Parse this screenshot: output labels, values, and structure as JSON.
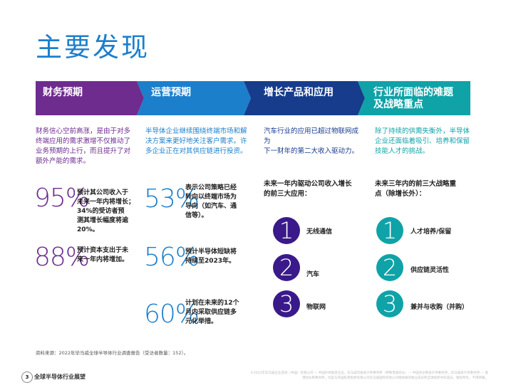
{
  "title": "主要发现",
  "colors": {
    "purple": "#6e2c8f",
    "blue": "#1b7fcc",
    "navy": "#173c8c",
    "teal": "#0fa3a8",
    "title": "#1c7fcc"
  },
  "columns": [
    {
      "header": "财务预期",
      "intro": [
        "财务信心空前高涨，是由于对多",
        "终端应用的需求激增不仅推动了",
        "业务预期的上行，而且提升了对",
        "额外产能的需求。"
      ],
      "stats": [
        {
          "value": "95%",
          "text": [
            "预计其公司收入于",
            "未来一年内将增长；",
            "34%的受访者预",
            "测其增长幅度将逾",
            "20%。"
          ]
        },
        {
          "value": "88%",
          "text": [
            "预计资本支出于未",
            "来一年内将增加。"
          ]
        }
      ]
    },
    {
      "header": "运营预期",
      "intro": [
        "半导体企业继续围绕终端市场和解",
        "决方案来更好地关注客户需求。许",
        "多企业正在对其供应链进行投资。"
      ],
      "stats": [
        {
          "value": "53%",
          "text": [
            "表示公司策略已经",
            "转向以终端市场为",
            "导向（如汽车、通",
            "信等）。"
          ]
        },
        {
          "value": "56%",
          "text": [
            "预计半导体短缺将",
            "持续至2023年。"
          ]
        },
        {
          "value": "60%",
          "text": [
            "计划在未来的12个",
            "月内采取供应链多",
            "元化举措。"
          ]
        }
      ]
    },
    {
      "header": "增长产品和应用",
      "intro": [
        "汽车行业的应用已超过物联网成为",
        "下一财年的第二大收入驱动力。"
      ],
      "subhead": [
        "未来一年内驱动公司收入增长",
        "的前三大应用："
      ],
      "items": [
        {
          "num": "1",
          "label": "无线通信"
        },
        {
          "num": "2",
          "label": "汽车"
        },
        {
          "num": "3",
          "label": "物联网"
        }
      ]
    },
    {
      "header": [
        "行业所面临的难题",
        "及战略重点"
      ],
      "intro": [
        "除了持续的供需失衡外，半导体",
        "企业还面临着吸引、培养和保留",
        "技能人才的挑战。"
      ],
      "subhead": [
        "未来三年内的前三大战略重",
        "点（除增长外）："
      ],
      "items": [
        {
          "num": "1",
          "label": "人才培养/保留"
        },
        {
          "num": "2",
          "label": "供应链灵活性"
        },
        {
          "num": "3",
          "label": "兼并与收购（并购）"
        }
      ]
    }
  ],
  "source": "资料来源：2022年毕马威全球半导体行业调查报告（受访者数量：152）。",
  "footer": {
    "page": "3",
    "title": "全球半导体行业展望",
    "copyright": "©2022年毕马威企业咨询（中国）有限公司 — 中国外商独资企业，毕马威华振会计师事务所（特殊普通合伙）— 中国合伙制会计师事务所，毕马威会计师事务所 — 香港合伙制事务所，均是与英国私营担保有限公司毕马威国际有限公司相关联的独立成员所全球组织中的成员。版权所有，不得转载。"
  }
}
